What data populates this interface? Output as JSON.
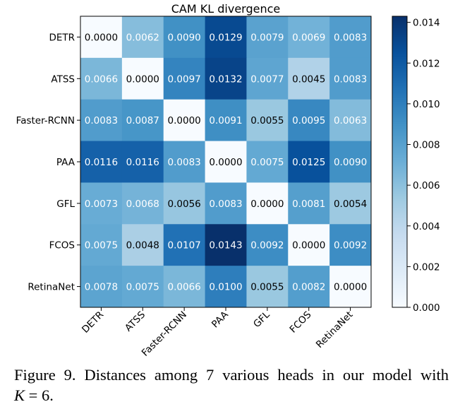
{
  "chart_data": {
    "type": "heatmap",
    "title": "CAM KL divergence",
    "rows": [
      "DETR",
      "ATSS",
      "Faster-RCNN",
      "PAA",
      "GFL",
      "FCOS",
      "RetinaNet"
    ],
    "columns": [
      "DETR",
      "ATSS",
      "Faster-RCNN",
      "PAA",
      "GFL",
      "FCOS",
      "RetinaNet"
    ],
    "values": [
      [
        0.0,
        0.0062,
        0.009,
        0.0129,
        0.0079,
        0.0069,
        0.0083
      ],
      [
        0.0066,
        0.0,
        0.0097,
        0.0132,
        0.0077,
        0.0045,
        0.0083
      ],
      [
        0.0083,
        0.0087,
        0.0,
        0.0091,
        0.0055,
        0.0095,
        0.0063
      ],
      [
        0.0116,
        0.0116,
        0.0083,
        0.0,
        0.0075,
        0.0125,
        0.009
      ],
      [
        0.0073,
        0.0068,
        0.0056,
        0.0083,
        0.0,
        0.0081,
        0.0054
      ],
      [
        0.0075,
        0.0048,
        0.0107,
        0.0143,
        0.0092,
        0.0,
        0.0092
      ],
      [
        0.0078,
        0.0075,
        0.0066,
        0.01,
        0.0055,
        0.0082,
        0.0
      ]
    ],
    "value_format_decimals": 4,
    "colormap": "Blues",
    "colormap_stops": [
      "#f7fbff",
      "#deebf7",
      "#c6dbef",
      "#9ecae1",
      "#6baed6",
      "#4292c6",
      "#2171b5",
      "#08519c",
      "#08306b"
    ],
    "color_range": [
      0.0,
      0.0143
    ],
    "colorbar": {
      "ticks": [
        0.0,
        0.002,
        0.004,
        0.006,
        0.008,
        0.01,
        0.012,
        0.014
      ],
      "tick_labels": [
        "0.000",
        "0.002",
        "0.004",
        "0.006",
        "0.008",
        "0.010",
        "0.012",
        "0.014"
      ],
      "placement": "right"
    },
    "x_tick_rotation": "45"
  },
  "caption": {
    "line1": "Figure 9.  Distances among 7 various heads in our model with",
    "line2_math_var": "K",
    "line2_rest": " = 6."
  }
}
